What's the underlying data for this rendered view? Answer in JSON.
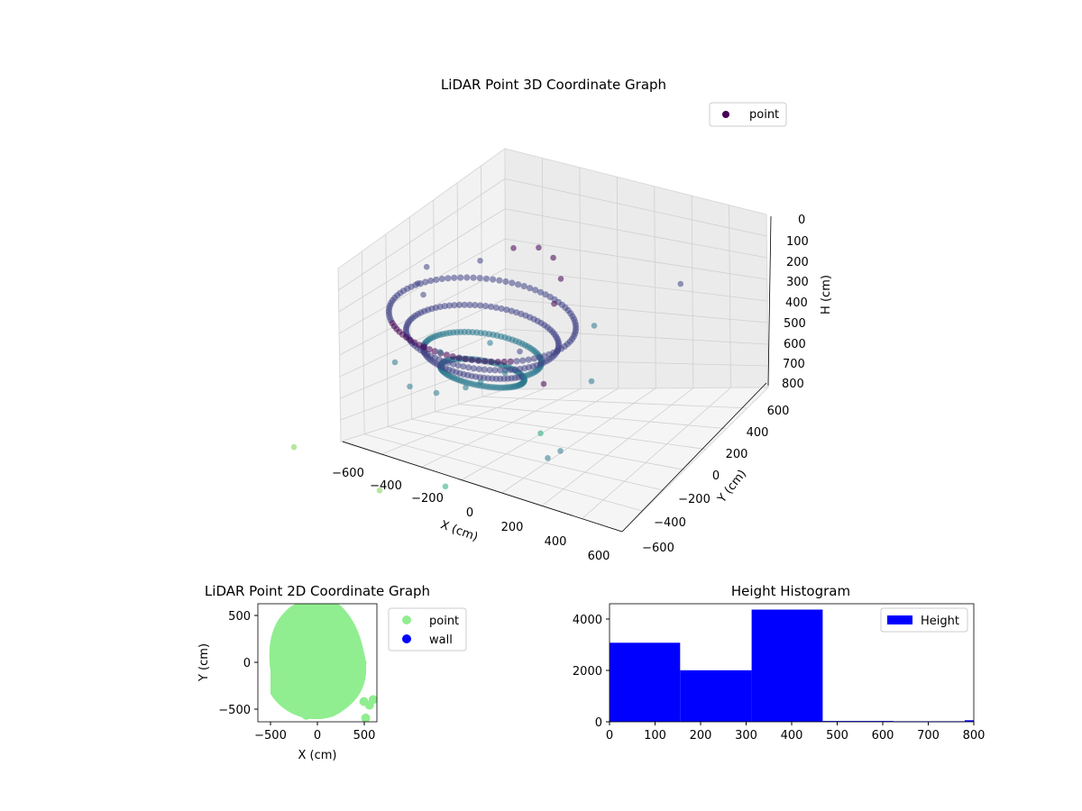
{
  "chart_data": [
    {
      "type": "scatter",
      "projection": "3d",
      "title": "LiDAR Point 3D Coordinate Graph",
      "xlabel": "X (cm)",
      "ylabel": "Y (cm)",
      "zlabel": "H (cm)",
      "xlim": [
        -650,
        650
      ],
      "ylim": [
        -650,
        650
      ],
      "zlim": [
        800,
        0
      ],
      "z_axis_inverted": true,
      "xticks": [
        "−600",
        "−400",
        "−200",
        "0",
        "200",
        "400",
        "600"
      ],
      "yticks": [
        "−600",
        "−400",
        "−200",
        "0",
        "200",
        "400",
        "600"
      ],
      "zticks": [
        "0",
        "100",
        "200",
        "300",
        "400",
        "500",
        "600",
        "700",
        "800"
      ],
      "legend": {
        "position": "top-right",
        "entries": [
          "point"
        ]
      },
      "colormap": "viridis",
      "grid": true,
      "series": [
        {
          "name": "point",
          "points": [
            {
              "x": -420,
              "y": 300,
              "h": 200
            },
            {
              "x": -380,
              "y": 150,
              "h": 180
            },
            {
              "x": -300,
              "y": 50,
              "h": 150
            },
            {
              "x": -200,
              "y": 350,
              "h": 120
            },
            {
              "x": -100,
              "y": 450,
              "h": 80
            },
            {
              "x": 0,
              "y": 480,
              "h": 60
            },
            {
              "x": 100,
              "y": 420,
              "h": 40
            },
            {
              "x": 200,
              "y": 300,
              "h": 40
            },
            {
              "x": 250,
              "y": 150,
              "h": 60
            },
            {
              "x": 200,
              "y": -50,
              "h": 200
            },
            {
              "x": 100,
              "y": -200,
              "h": 300
            },
            {
              "x": -50,
              "y": -300,
              "h": 350
            },
            {
              "x": -200,
              "y": -250,
              "h": 400
            },
            {
              "x": -350,
              "y": -100,
              "h": 420
            },
            {
              "x": -250,
              "y": 100,
              "h": 450
            },
            {
              "x": -100,
              "y": 250,
              "h": 440
            },
            {
              "x": 50,
              "y": 100,
              "h": 450
            },
            {
              "x": -50,
              "y": -50,
              "h": 470
            },
            {
              "x": 300,
              "y": 400,
              "h": 300
            },
            {
              "x": 450,
              "y": 100,
              "h": 350
            },
            {
              "x": 500,
              "y": -400,
              "h": 50
            },
            {
              "x": 550,
              "y": -350,
              "h": 400
            },
            {
              "x": 600,
              "y": -550,
              "h": 300
            },
            {
              "x": -600,
              "y": -500,
              "h": 700
            },
            {
              "x": 580,
              "y": 620,
              "h": 120
            },
            {
              "x": 350,
              "y": -150,
              "h": 500
            },
            {
              "x": 100,
              "y": -500,
              "h": 650
            },
            {
              "x": -150,
              "y": -600,
              "h": 700
            }
          ]
        }
      ]
    },
    {
      "type": "scatter",
      "title": "LiDAR Point 2D Coordinate Graph",
      "xlabel": "X (cm)",
      "ylabel": "Y (cm)",
      "xlim": [
        -640,
        640
      ],
      "ylim": [
        -640,
        640
      ],
      "xticks": [
        "−500",
        "0",
        "500"
      ],
      "yticks": [
        "−500",
        "0",
        "500"
      ],
      "legend": {
        "position": "outside-right",
        "entries": [
          "point",
          "wall"
        ]
      },
      "series": [
        {
          "name": "point",
          "color": "#90ee90",
          "points": [
            {
              "x": -420,
              "y": 100
            },
            {
              "x": -380,
              "y": 300
            },
            {
              "x": -300,
              "y": 450
            },
            {
              "x": -150,
              "y": 550
            },
            {
              "x": 0,
              "y": 600
            },
            {
              "x": 150,
              "y": 550
            },
            {
              "x": 250,
              "y": 400
            },
            {
              "x": 300,
              "y": 200
            },
            {
              "x": 350,
              "y": 0
            },
            {
              "x": 280,
              "y": -200
            },
            {
              "x": 150,
              "y": -350
            },
            {
              "x": 0,
              "y": -450
            },
            {
              "x": -150,
              "y": -480
            },
            {
              "x": -300,
              "y": -400
            },
            {
              "x": -400,
              "y": -200
            },
            {
              "x": -450,
              "y": 0
            },
            {
              "x": -100,
              "y": 0
            },
            {
              "x": 100,
              "y": 100
            },
            {
              "x": 480,
              "y": 0
            },
            {
              "x": 500,
              "y": -420
            },
            {
              "x": 560,
              "y": -460
            },
            {
              "x": 600,
              "y": -400
            },
            {
              "x": 520,
              "y": -600
            },
            {
              "x": 230,
              "y": -280
            },
            {
              "x": -120,
              "y": -570
            },
            {
              "x": 100,
              "y": 620
            },
            {
              "x": 400,
              "y": 250
            }
          ]
        },
        {
          "name": "wall",
          "color": "#0000ff",
          "points": []
        }
      ]
    },
    {
      "type": "bar",
      "subtype": "histogram",
      "title": "Height Histogram",
      "xlim": [
        0,
        800
      ],
      "ylim": [
        0,
        4600
      ],
      "xticks": [
        "0",
        "100",
        "200",
        "300",
        "400",
        "500",
        "600",
        "700",
        "800"
      ],
      "yticks": [
        "0",
        "2000",
        "4000"
      ],
      "legend": {
        "position": "top-right",
        "entries": [
          "Height"
        ]
      },
      "color": "#0000ff",
      "series": [
        {
          "name": "Height",
          "bins": [
            {
              "x0": 0,
              "x1": 155,
              "count": 3080
            },
            {
              "x0": 155,
              "x1": 312,
              "count": 2010
            },
            {
              "x0": 312,
              "x1": 468,
              "count": 4370
            },
            {
              "x0": 468,
              "x1": 624,
              "count": 30
            },
            {
              "x0": 624,
              "x1": 780,
              "count": 20
            },
            {
              "x0": 780,
              "x1": 800,
              "count": 60
            }
          ]
        }
      ]
    }
  ]
}
